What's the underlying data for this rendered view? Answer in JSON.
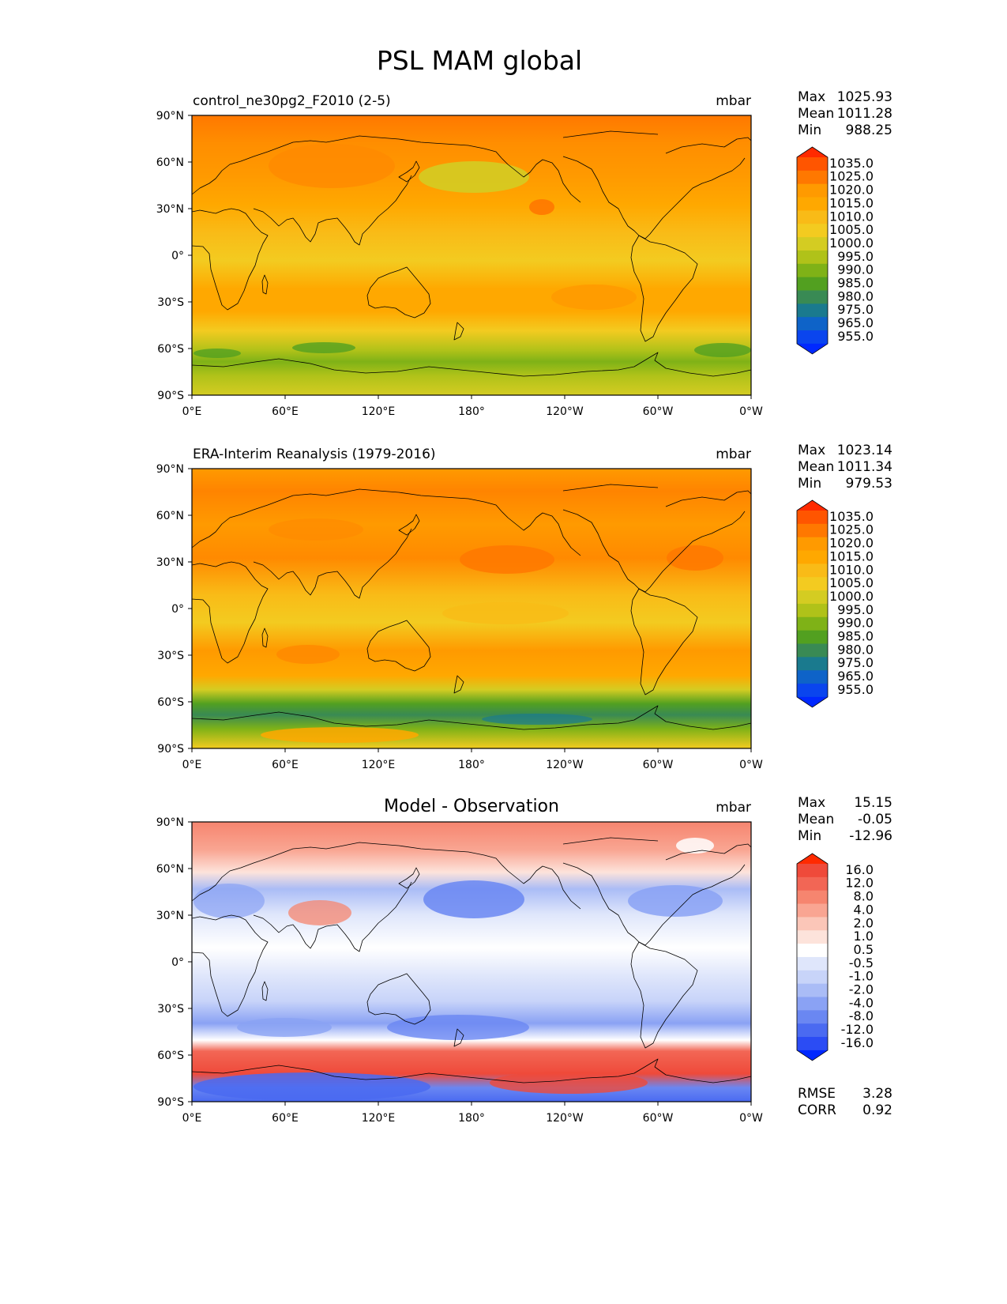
{
  "figure": {
    "title": "PSL MAM global",
    "units": "mbar",
    "stat_labels": {
      "max": "Max",
      "mean": "Mean",
      "min": "Min"
    },
    "lat_ticks": [
      "90°N",
      "60°N",
      "30°N",
      "0°",
      "30°S",
      "60°S",
      "90°S"
    ],
    "lon_ticks": [
      "0°E",
      "60°E",
      "120°E",
      "180°",
      "120°W",
      "60°W",
      "0°W"
    ]
  },
  "panels": [
    {
      "title": "control_ne30pg2_F2010 (2-5)",
      "title_style": "left",
      "units": "mbar",
      "max": "1025.93",
      "mean": "1011.28",
      "min": "988.25",
      "field": "model"
    },
    {
      "title": "ERA-Interim Reanalysis (1979-2016)",
      "title_style": "left",
      "units": "mbar",
      "max": "1023.14",
      "mean": "1011.34",
      "min": "979.53",
      "field": "obs"
    },
    {
      "title": "Model - Observation",
      "title_style": "center",
      "units": "mbar",
      "max": "15.15",
      "mean": "-0.05",
      "min": "-12.96",
      "field": "diff",
      "rmse_label": "RMSE",
      "rmse": "3.28",
      "corr_label": "CORR",
      "corr": "0.92"
    }
  ],
  "colorbars": {
    "absolute": {
      "labels": [
        "1035.0",
        "1025.0",
        "1020.0",
        "1015.0",
        "1010.0",
        "1005.0",
        "1000.0",
        "995.0",
        "990.0",
        "985.0",
        "980.0",
        "975.0",
        "965.0",
        "955.0"
      ],
      "colors": [
        "#ff2a00",
        "#ff5500",
        "#ff7800",
        "#ff9a00",
        "#ffa800",
        "#f9bb17",
        "#f3cb20",
        "#d4cc22",
        "#b0c219",
        "#7fb217",
        "#52a020",
        "#398a54",
        "#1a7a8e",
        "#0e63c8",
        "#0a45ee",
        "#0028ff"
      ]
    },
    "diff": {
      "labels": [
        "16.0",
        "12.0",
        "8.0",
        "4.0",
        "2.0",
        "1.0",
        "0.5",
        "-0.5",
        "-1.0",
        "-2.0",
        "-4.0",
        "-8.0",
        "-12.0",
        "-16.0"
      ],
      "colors": [
        "#ff2a00",
        "#ef4a3a",
        "#f26655",
        "#f6856f",
        "#f9a592",
        "#fbc6b8",
        "#fde3db",
        "#ffffff",
        "#dfe6fb",
        "#c8d4f9",
        "#aabcf6",
        "#8aa2f4",
        "#6a87f2",
        "#4a6af1",
        "#2b4cf4",
        "#0028ff"
      ]
    }
  },
  "chart_data": [
    {
      "type": "heatmap",
      "title": "control_ne30pg2_F2010 (2-5)",
      "units": "mbar",
      "stats": {
        "max": 1025.93,
        "mean": 1011.28,
        "min": 988.25
      },
      "x": "longitude 0°E–360°",
      "y": "latitude 90°S–90°N",
      "levels": [
        955,
        965,
        975,
        980,
        985,
        990,
        995,
        1000,
        1005,
        1010,
        1015,
        1020,
        1025,
        1035
      ]
    },
    {
      "type": "heatmap",
      "title": "ERA-Interim Reanalysis (1979-2016)",
      "units": "mbar",
      "stats": {
        "max": 1023.14,
        "mean": 1011.34,
        "min": 979.53
      },
      "levels": [
        955,
        965,
        975,
        980,
        985,
        990,
        995,
        1000,
        1005,
        1010,
        1015,
        1020,
        1025,
        1035
      ]
    },
    {
      "type": "heatmap",
      "title": "Model - Observation",
      "units": "mbar",
      "stats": {
        "max": 15.15,
        "mean": -0.05,
        "min": -12.96,
        "rmse": 3.28,
        "corr": 0.92
      },
      "levels": [
        -16,
        -12,
        -8,
        -4,
        -2,
        -1,
        -0.5,
        0.5,
        1,
        2,
        4,
        8,
        12,
        16
      ]
    }
  ]
}
